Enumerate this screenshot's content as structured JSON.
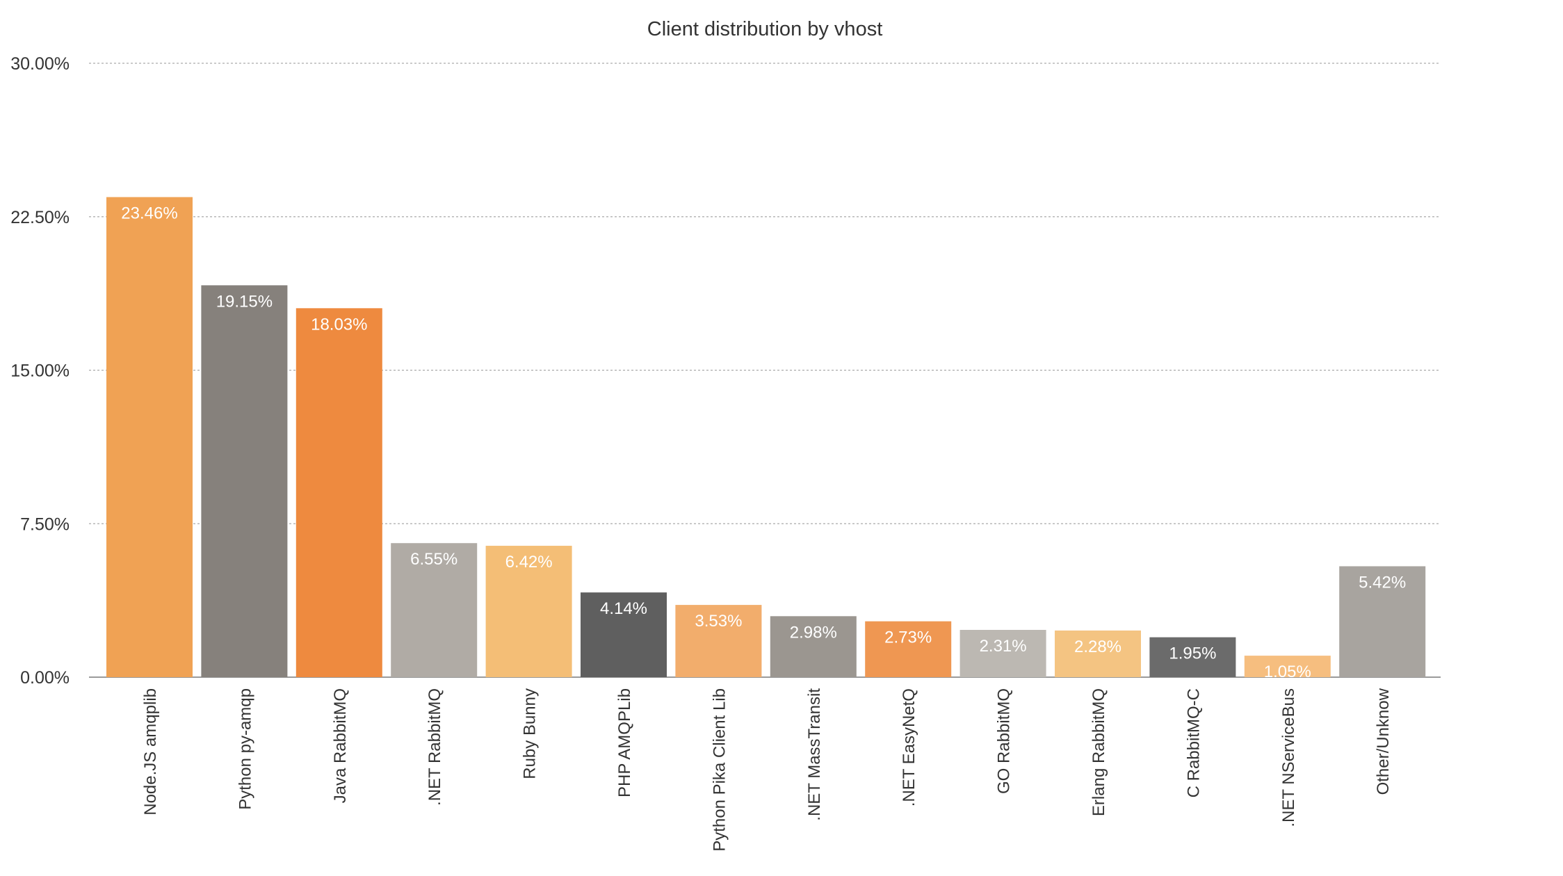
{
  "chart_data": {
    "type": "bar",
    "title": "Client distribution by vhost",
    "xlabel": "",
    "ylabel": "",
    "ylim": [
      0,
      30
    ],
    "yticks": [
      "0.00%",
      "7.50%",
      "15.00%",
      "22.50%",
      "30.00%"
    ],
    "ytick_values": [
      0,
      7.5,
      15,
      22.5,
      30
    ],
    "grid": true,
    "categories": [
      "Node.JS amqplib",
      "Python py-amqp",
      "Java RabbitMQ",
      ".NET RabbitMQ",
      "Ruby Bunny",
      "PHP AMQPLib",
      "Python Pika Client Lib",
      ".NET MassTransit",
      ".NET EasyNetQ",
      "GO RabbitMQ",
      "Erlang RabbitMQ",
      "C RabbitMQ-C",
      ".NET NServiceBus",
      "Other/Unknow"
    ],
    "values": [
      23.46,
      19.15,
      18.03,
      6.55,
      6.42,
      4.14,
      3.53,
      2.98,
      2.73,
      2.31,
      2.28,
      1.95,
      1.05,
      5.42
    ],
    "data_labels": [
      "23.46%",
      "19.15%",
      "18.03%",
      "6.55%",
      "6.42%",
      "4.14%",
      "3.53%",
      "2.98%",
      "2.73%",
      "2.31%",
      "2.28%",
      "1.95%",
      "1.05%",
      "5.42%"
    ],
    "colors": [
      "#F0A254",
      "#86817C",
      "#EE8A3F",
      "#B0ABA5",
      "#F4BE76",
      "#5F5F5F",
      "#F2AD6C",
      "#9B9690",
      "#EF9752",
      "#BCB8B2",
      "#F4C482",
      "#6B6B6B",
      "#F6BE7F",
      "#A8A49F"
    ]
  }
}
